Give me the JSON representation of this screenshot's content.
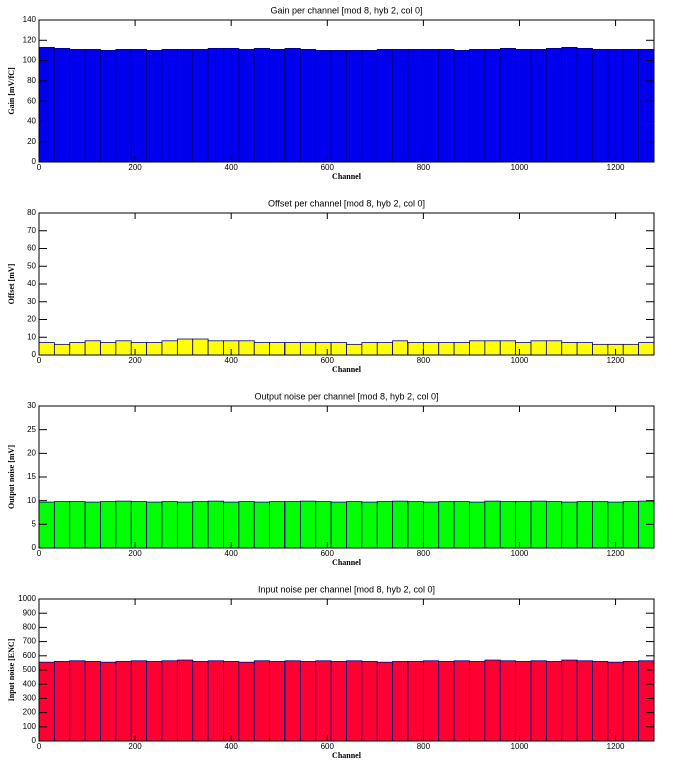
{
  "chart_data": [
    {
      "type": "histogram",
      "title": "Gain per channel [mod 8, hyb 2, col 0]",
      "x_label": "Channel",
      "y_label": "Gain [mV/fC]",
      "color": "#0000ee",
      "edge_color": "#000080",
      "bins": [
        0,
        32,
        64,
        96,
        128,
        160,
        192,
        224,
        256,
        288,
        320,
        352,
        384,
        416,
        448,
        480,
        511,
        512,
        544,
        576,
        608,
        640,
        672,
        704,
        736,
        767,
        768,
        800,
        832,
        864,
        896,
        928,
        960,
        992,
        1024,
        1056,
        1088,
        1120,
        1152,
        1184,
        1216,
        1248,
        1280
      ],
      "values": [
        113,
        112,
        111,
        111,
        110,
        111,
        111,
        110,
        111,
        111,
        111,
        112,
        112,
        111,
        112,
        111,
        0,
        112,
        111,
        110,
        110,
        110,
        110,
        111,
        111,
        0,
        111,
        111,
        111,
        110,
        111,
        111,
        112,
        111,
        111,
        112,
        113,
        112,
        111,
        111,
        111,
        111
      ],
      "xlim": [
        0,
        1280
      ],
      "xticks": [
        0,
        200,
        400,
        600,
        800,
        1000,
        1200
      ],
      "ylim": [
        0,
        140
      ],
      "yticks": [
        0,
        20,
        40,
        60,
        80,
        100,
        120,
        140
      ]
    },
    {
      "type": "histogram",
      "title": "Offset per channel [mod 8, hyb 2, col 0]",
      "x_label": "Channel",
      "y_label": "Offset [mV]",
      "color": "#ffff00",
      "edge_color": "#000080",
      "bins": [
        0,
        32,
        64,
        96,
        128,
        160,
        192,
        224,
        256,
        288,
        320,
        352,
        384,
        416,
        448,
        480,
        511,
        512,
        544,
        576,
        608,
        640,
        672,
        704,
        736,
        767,
        768,
        800,
        832,
        864,
        896,
        928,
        960,
        992,
        1024,
        1056,
        1088,
        1120,
        1152,
        1184,
        1216,
        1248,
        1280
      ],
      "values": [
        7,
        6,
        7,
        8,
        7,
        8,
        7,
        7,
        8,
        9,
        9,
        8,
        8,
        8,
        7,
        7,
        0,
        7,
        7,
        7,
        7,
        6,
        7,
        7,
        8,
        0,
        7,
        7,
        7,
        7,
        8,
        8,
        8,
        7,
        8,
        8,
        7,
        7,
        6,
        6,
        6,
        7
      ],
      "xlim": [
        0,
        1280
      ],
      "xticks": [
        0,
        200,
        400,
        600,
        800,
        1000,
        1200
      ],
      "ylim": [
        0,
        80
      ],
      "yticks": [
        0,
        10,
        20,
        30,
        40,
        50,
        60,
        70,
        80
      ]
    },
    {
      "type": "histogram",
      "title": "Output noise per channel [mod 8, hyb 2, col 0]",
      "x_label": "Channel",
      "y_label": "Output noise [mV]",
      "color": "#00ff00",
      "edge_color": "#000080",
      "bins": [
        0,
        32,
        64,
        96,
        128,
        160,
        192,
        224,
        256,
        288,
        320,
        352,
        384,
        416,
        448,
        480,
        511,
        512,
        544,
        576,
        608,
        640,
        672,
        704,
        736,
        767,
        768,
        800,
        832,
        864,
        896,
        928,
        960,
        992,
        1024,
        1056,
        1088,
        1120,
        1152,
        1184,
        1216,
        1248,
        1280
      ],
      "values": [
        9.7,
        9.8,
        9.8,
        9.7,
        9.8,
        9.9,
        9.8,
        9.7,
        9.8,
        9.7,
        9.8,
        9.9,
        9.7,
        9.8,
        9.7,
        9.8,
        0,
        9.8,
        9.9,
        9.8,
        9.7,
        9.8,
        9.7,
        9.8,
        9.9,
        0,
        9.8,
        9.7,
        9.8,
        9.8,
        9.7,
        9.9,
        9.8,
        9.8,
        9.9,
        9.8,
        9.7,
        9.8,
        9.8,
        9.7,
        9.8,
        9.9
      ],
      "xlim": [
        0,
        1280
      ],
      "xticks": [
        0,
        200,
        400,
        600,
        800,
        1000,
        1200
      ],
      "ylim": [
        0,
        30
      ],
      "yticks": [
        0,
        5,
        10,
        15,
        20,
        25,
        30
      ]
    },
    {
      "type": "histogram",
      "title": "Input noise per channel [mod 8, hyb 2, col 0]",
      "x_label": "Channel",
      "y_label": "Input noise [ENC]",
      "color": "#ff0033",
      "edge_color": "#000080",
      "bins": [
        0,
        32,
        64,
        96,
        128,
        160,
        192,
        224,
        256,
        288,
        320,
        352,
        384,
        416,
        448,
        480,
        511,
        512,
        544,
        576,
        608,
        640,
        672,
        704,
        736,
        767,
        768,
        800,
        832,
        864,
        896,
        928,
        960,
        992,
        1024,
        1056,
        1088,
        1120,
        1152,
        1184,
        1216,
        1248,
        1280
      ],
      "values": [
        555,
        560,
        565,
        560,
        555,
        560,
        565,
        560,
        565,
        570,
        560,
        565,
        560,
        555,
        565,
        560,
        0,
        565,
        560,
        565,
        560,
        565,
        560,
        555,
        560,
        0,
        560,
        565,
        560,
        565,
        560,
        570,
        565,
        560,
        565,
        560,
        570,
        565,
        560,
        555,
        560,
        565
      ],
      "xlim": [
        0,
        1280
      ],
      "xticks": [
        0,
        200,
        400,
        600,
        800,
        1000,
        1200
      ],
      "ylim": [
        0,
        1000
      ],
      "yticks": [
        0,
        100,
        200,
        300,
        400,
        500,
        600,
        700,
        800,
        900,
        1000
      ]
    }
  ]
}
